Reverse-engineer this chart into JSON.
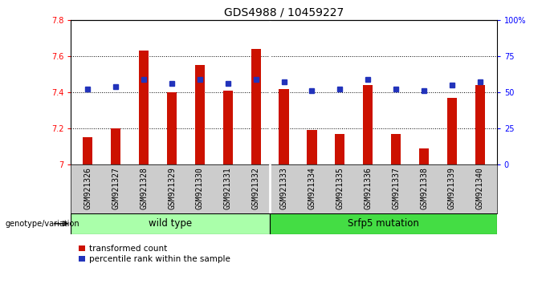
{
  "title": "GDS4988 / 10459227",
  "samples": [
    "GSM921326",
    "GSM921327",
    "GSM921328",
    "GSM921329",
    "GSM921330",
    "GSM921331",
    "GSM921332",
    "GSM921333",
    "GSM921334",
    "GSM921335",
    "GSM921336",
    "GSM921337",
    "GSM921338",
    "GSM921339",
    "GSM921340"
  ],
  "transformed_count": [
    7.15,
    7.2,
    7.63,
    7.4,
    7.55,
    7.41,
    7.64,
    7.42,
    7.19,
    7.17,
    7.44,
    7.17,
    7.09,
    7.37,
    7.44
  ],
  "percentile_rank_y": [
    7.42,
    7.43,
    7.47,
    7.45,
    7.47,
    7.45,
    7.47,
    7.46,
    7.41,
    7.42,
    7.47,
    7.42,
    7.41,
    7.44,
    7.46
  ],
  "groups": [
    {
      "label": "wild type",
      "start": 0,
      "end": 7,
      "color": "#aaffaa"
    },
    {
      "label": "Srfp5 mutation",
      "start": 7,
      "end": 15,
      "color": "#44dd44"
    }
  ],
  "ymin": 7.0,
  "ymax": 7.8,
  "yticks": [
    7.0,
    7.2,
    7.4,
    7.6,
    7.8
  ],
  "ytick_labels": [
    "7",
    "7.2",
    "7.4",
    "7.6",
    "7.8"
  ],
  "right_yticks_pct": [
    0,
    25,
    50,
    75,
    100
  ],
  "right_ytick_labels": [
    "0",
    "25",
    "50",
    "75",
    "100%"
  ],
  "bar_color": "#cc1100",
  "dot_color": "#2233bb",
  "bar_bottom": 7.0,
  "grid_yticks": [
    7.2,
    7.4,
    7.6
  ],
  "title_fontsize": 10,
  "tick_fontsize": 7,
  "legend_fontsize": 7.5,
  "group_label_fontsize": 8.5,
  "xtick_bg_color": "#cccccc",
  "plot_bg_color": "#ffffff",
  "legend_red_label": "transformed count",
  "legend_blue_label": "percentile rank within the sample",
  "genotype_label": "genotype/variation"
}
